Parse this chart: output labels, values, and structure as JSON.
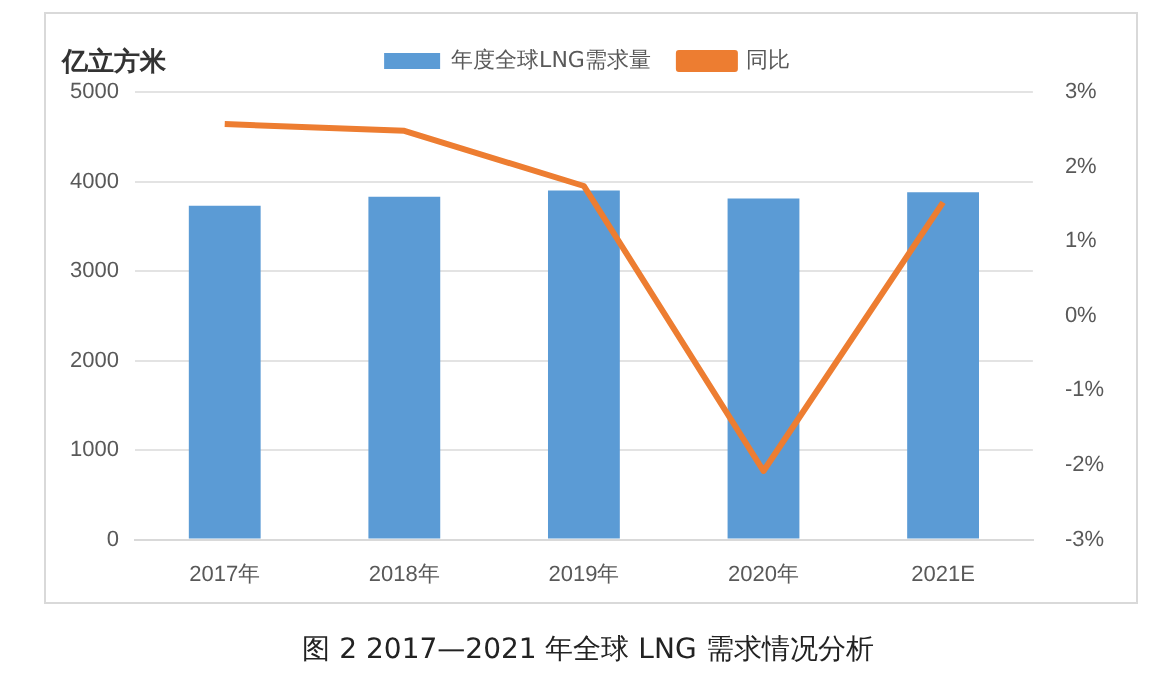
{
  "chart_data": {
    "type": "bar",
    "ylabel": "亿立方米",
    "categories": [
      "2017年",
      "2018年",
      "2019年",
      "2020年",
      "2021E"
    ],
    "series": [
      {
        "name": "年度全球LNG需求量",
        "color": "#5b9bd5",
        "values": [
          3730,
          3830,
          3900,
          3810,
          3880
        ]
      },
      {
        "name": "同比",
        "type": "line",
        "axis": "y2",
        "color": "#ed7d31",
        "values": [
          2.57,
          2.48,
          1.74,
          -2.08,
          1.52
        ]
      }
    ],
    "ylim": [
      0,
      5000
    ],
    "yticks": [
      0,
      1000,
      2000,
      3000,
      4000,
      5000
    ],
    "y2lim": [
      -3,
      3
    ],
    "y2ticks": [
      {
        "value": -3,
        "label": "-3%"
      },
      {
        "value": -2,
        "label": "-2%"
      },
      {
        "value": -1,
        "label": "-1%"
      },
      {
        "value": 0,
        "label": "0%"
      },
      {
        "value": 1,
        "label": "1%"
      },
      {
        "value": 2,
        "label": "2%"
      },
      {
        "value": 3,
        "label": "3%"
      }
    ],
    "grid": "y",
    "legend": "top",
    "marker": "none",
    "annotations": [
      "图 2  2017—2021 年全球 LNG 需求情况分析"
    ]
  }
}
